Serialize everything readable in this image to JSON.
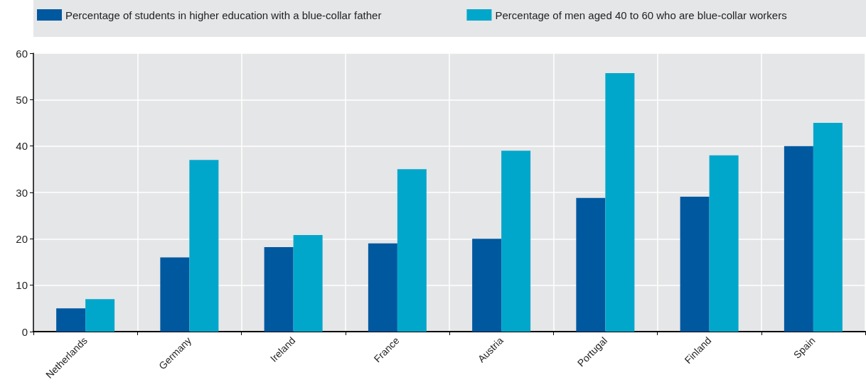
{
  "chart_data": {
    "type": "bar",
    "categories": [
      "Netherlands",
      "Germany",
      "Ireland",
      "France",
      "Austria",
      "Portugal",
      "Finland",
      "Spain"
    ],
    "series": [
      {
        "name": "Percentage of students in higher education with a blue-collar father",
        "color": "#00589f",
        "values": [
          5,
          16,
          18.2,
          19,
          20,
          28.8,
          29.1,
          40
        ]
      },
      {
        "name": "Percentage of men aged 40 to 60 who are blue-collar workers",
        "color": "#00a7cb",
        "values": [
          7,
          37,
          20.8,
          35,
          39,
          55.7,
          38,
          45
        ]
      }
    ],
    "ylim": [
      0,
      60
    ],
    "yticks": [
      0,
      10,
      20,
      30,
      40,
      50,
      60
    ],
    "grid": true,
    "legend": "top"
  }
}
